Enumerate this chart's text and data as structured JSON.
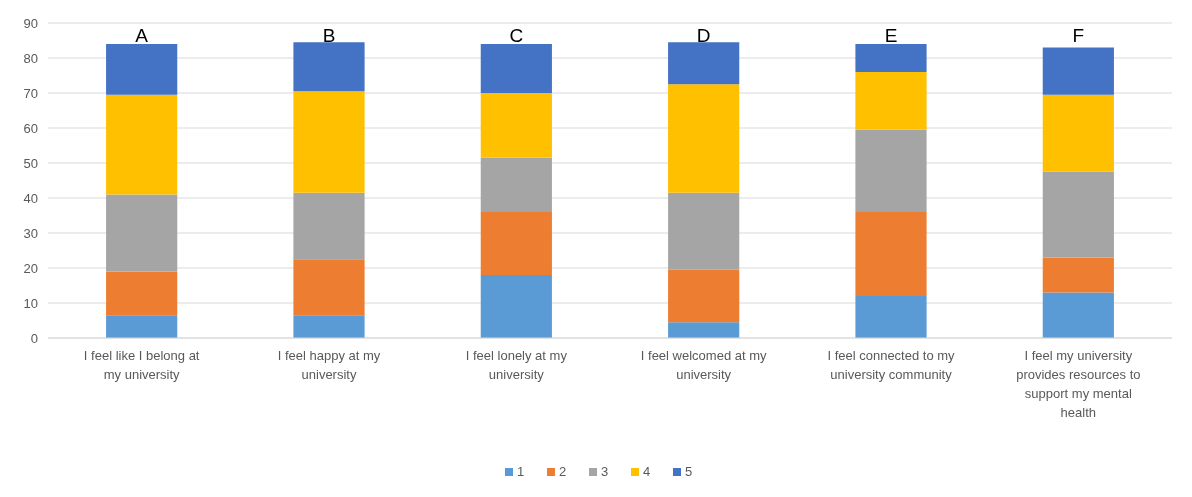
{
  "chart_data": {
    "type": "bar",
    "stacked": true,
    "categories": [
      "I feel like I belong at my university",
      "I feel happy at my university",
      "I feel lonely at my university",
      "I feel welcomed at my university",
      "I feel connected to my university community",
      "I feel my university provides resources to support my mental health"
    ],
    "series": [
      {
        "name": "1",
        "color": "#5b9bd5",
        "values": [
          6.5,
          6.5,
          18,
          4.5,
          12,
          13
        ]
      },
      {
        "name": "2",
        "color": "#ed7d31",
        "values": [
          12.5,
          16,
          18,
          15,
          24,
          10
        ]
      },
      {
        "name": "3",
        "color": "#a5a5a5",
        "values": [
          22,
          19,
          15.5,
          22,
          23.5,
          24.5
        ]
      },
      {
        "name": "4",
        "color": "#ffc000",
        "values": [
          28.5,
          29,
          18.5,
          31,
          16.5,
          22
        ]
      },
      {
        "name": "5",
        "color": "#4472c4",
        "values": [
          14.5,
          14,
          14,
          12,
          8,
          13.5
        ]
      }
    ],
    "ylim": [
      0,
      90
    ],
    "yticks": [
      0,
      10,
      20,
      30,
      40,
      50,
      60,
      70,
      80,
      90
    ],
    "grid": "y",
    "legend": "bottom",
    "annotations": [
      "A",
      "B",
      "C",
      "D",
      "E",
      "F"
    ]
  }
}
